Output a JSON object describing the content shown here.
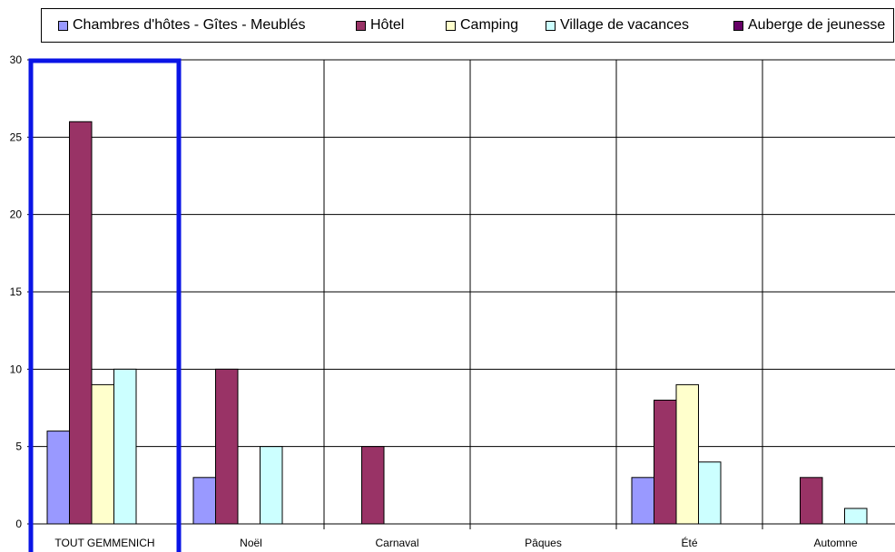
{
  "chart_data": {
    "type": "bar",
    "title": "",
    "xlabel": "",
    "ylabel": "",
    "ylim": [
      0,
      30
    ],
    "yticks": [
      0,
      5,
      10,
      15,
      20,
      25,
      30
    ],
    "grid": true,
    "legend_position": "top",
    "categories": [
      "TOUT GEMMENICH",
      "Noël",
      "Carnaval",
      "Pâques",
      "Été",
      "Automne"
    ],
    "highlighted_category": "TOUT GEMMENICH",
    "highlight_color": "#0a14e6",
    "series": [
      {
        "name": "Chambres d'hôtes - Gîtes - Meublés",
        "color": "#9999ff",
        "values": [
          6,
          3,
          0,
          0,
          3,
          0
        ]
      },
      {
        "name": "Hôtel",
        "color": "#993366",
        "values": [
          26,
          10,
          5,
          0,
          8,
          3
        ]
      },
      {
        "name": "Camping",
        "color": "#ffffcc",
        "values": [
          9,
          0,
          0,
          0,
          9,
          0
        ]
      },
      {
        "name": "Village de vacances",
        "color": "#ccffff",
        "values": [
          10,
          5,
          0,
          0,
          4,
          1
        ]
      },
      {
        "name": "Auberge de jeunesse",
        "color": "#660066",
        "values": [
          0,
          0,
          0,
          0,
          0,
          0
        ]
      }
    ]
  }
}
